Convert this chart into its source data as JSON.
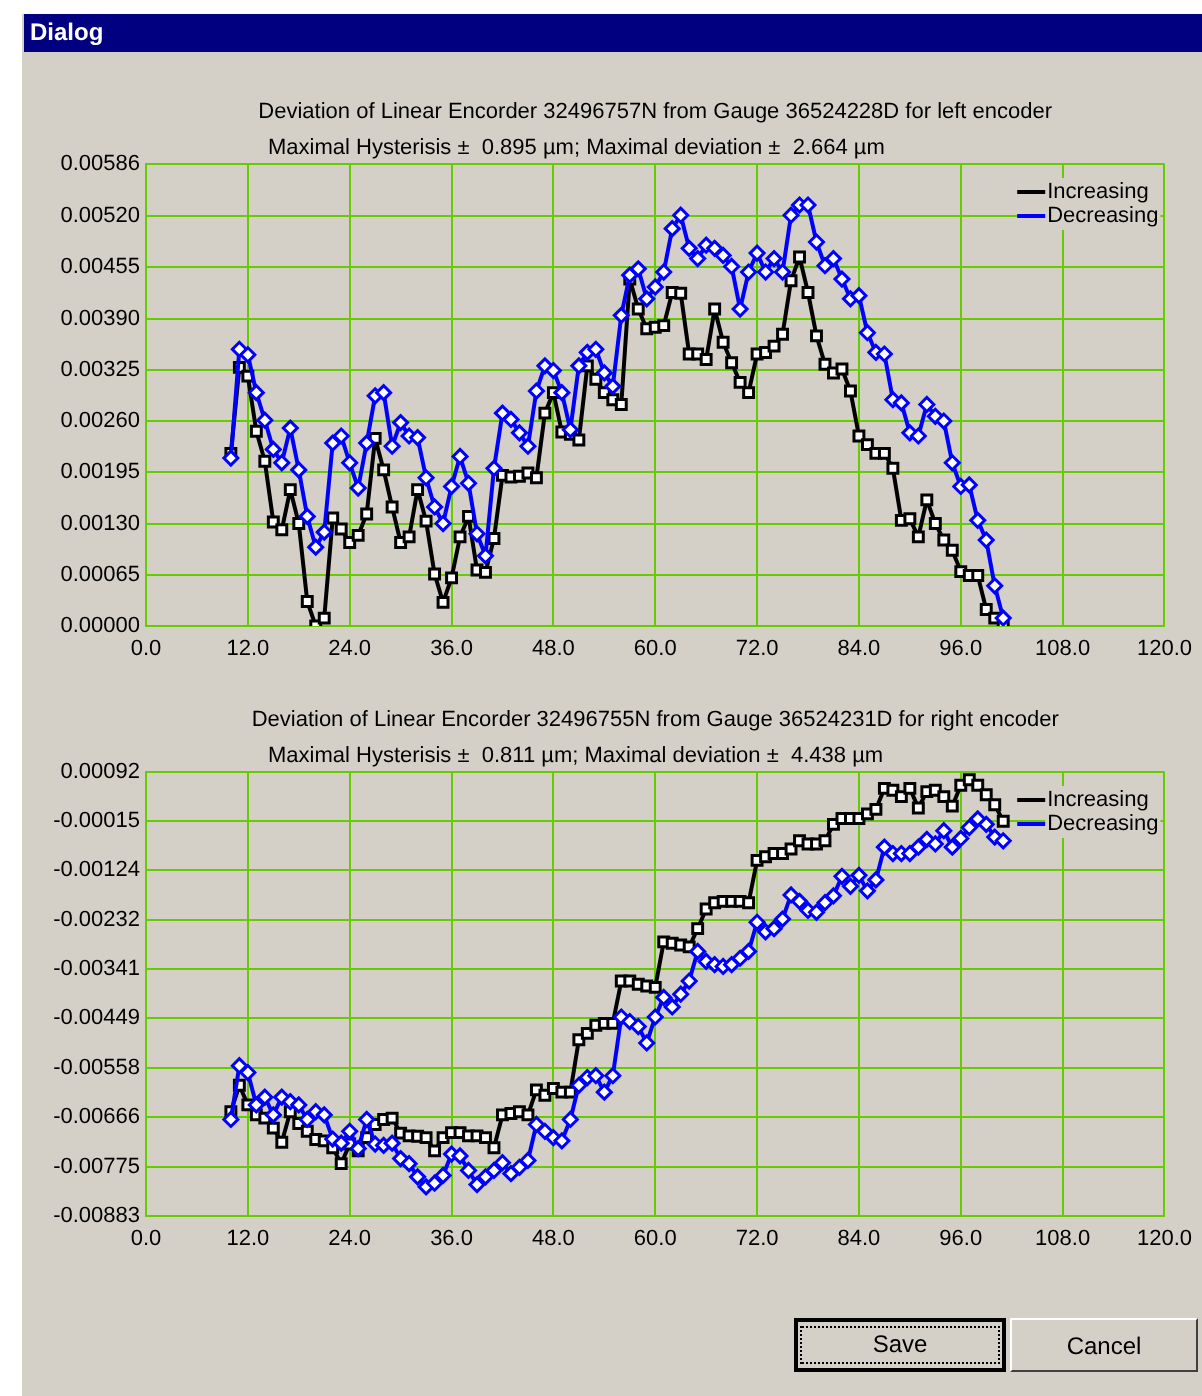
{
  "chart_data": [
    {
      "type": "other",
      "title": "Dialog",
      "annotations": [
        "Save",
        "Cancel"
      ]
    },
    {
      "type": "line",
      "title": "Deviation of Linear Encorder 32496757N from Gauge 36524228D for left encoder",
      "subtitle": "Maximal Hysterisis ±  0.895 µm; Maximal deviation ±  2.664 µm",
      "x": [
        10,
        11,
        12,
        13,
        14,
        15,
        16,
        17,
        18,
        19,
        20,
        21,
        22,
        23,
        24,
        25,
        26,
        27,
        28,
        29,
        30,
        31,
        32,
        33,
        34,
        35,
        36,
        37,
        38,
        39,
        40,
        41,
        42,
        43,
        44,
        45,
        46,
        47,
        48,
        49,
        50,
        51,
        52,
        53,
        54,
        55,
        56,
        57,
        58,
        59,
        60,
        61,
        62,
        63,
        64,
        65,
        66,
        67,
        68,
        69,
        70,
        71,
        72,
        73,
        74,
        75,
        76,
        77,
        78,
        79,
        80,
        81,
        82,
        83,
        84,
        85,
        86,
        87,
        88,
        89,
        90,
        91,
        92,
        93,
        94,
        95,
        96,
        97,
        98,
        99,
        100,
        101
      ],
      "series": [
        {
          "name": "Increasing",
          "color": "#000000",
          "marker": "square",
          "values": [
            0.00219,
            0.00328,
            0.00317,
            0.00247,
            0.00209,
            0.00132,
            0.00122,
            0.00173,
            0.0013,
            0.00031,
            0,
            0.0001,
            0.00137,
            0.00123,
            0.00106,
            0.00115,
            0.00142,
            0.00238,
            0.00198,
            0.00151,
            0.00106,
            0.00113,
            0.00173,
            0.00133,
            0.00066,
            0.0003,
            0.00061,
            0.00113,
            0.00139,
            0.00071,
            0.00068,
            0.00111,
            0.00191,
            0.00189,
            0.0019,
            0.00194,
            0.00188,
            0.0027,
            0.00296,
            0.00246,
            0.00243,
            0.00236,
            0.0033,
            0.00313,
            0.00296,
            0.00287,
            0.00281,
            0.0044,
            0.00402,
            0.00377,
            0.00379,
            0.00381,
            0.00423,
            0.00422,
            0.00345,
            0.00345,
            0.00338,
            0.00402,
            0.0036,
            0.00334,
            0.00309,
            0.00296,
            0.00345,
            0.00347,
            0.00355,
            0.0037,
            0.00438,
            0.00468,
            0.00423,
            0.00368,
            0.00332,
            0.00321,
            0.00326,
            0.00298,
            0.00241,
            0.0023,
            0.00219,
            0.00219,
            0.002,
            0.00134,
            0.00136,
            0.00113,
            0.0016,
            0.0013,
            0.00109,
            0.00096,
            0.00069,
            0.00064,
            0.00064,
            0.00021,
            0.0001,
            0
          ]
        },
        {
          "name": "Decreasing",
          "color": "#0000ff",
          "marker": "diamond",
          "values": [
            0.00213,
            0.00351,
            0.00344,
            0.00296,
            0.00261,
            0.00224,
            0.00207,
            0.00251,
            0.00198,
            0.00139,
            0.001,
            0.00119,
            0.00232,
            0.00241,
            0.00207,
            0.00175,
            0.00232,
            0.00292,
            0.00296,
            0.00228,
            0.00258,
            0.00241,
            0.00239,
            0.00188,
            0.00151,
            0.0013,
            0.00177,
            0.00215,
            0.00181,
            0.00117,
            0.00089,
            0.002,
            0.0027,
            0.00262,
            0.00245,
            0.00228,
            0.00298,
            0.0033,
            0.00324,
            0.00296,
            0.00249,
            0.0033,
            0.00347,
            0.00351,
            0.00321,
            0.00304,
            0.00394,
            0.00445,
            0.00453,
            0.00415,
            0.0043,
            0.00449,
            0.00504,
            0.00521,
            0.00479,
            0.00466,
            0.00483,
            0.00479,
            0.0047,
            0.00456,
            0.00402,
            0.00449,
            0.00473,
            0.00449,
            0.00466,
            0.00449,
            0.00521,
            0.00534,
            0.00534,
            0.00487,
            0.00457,
            0.00466,
            0.0044,
            0.00415,
            0.00419,
            0.00372,
            0.00347,
            0.00345,
            0.00287,
            0.00283,
            0.00245,
            0.00241,
            0.00281,
            0.00266,
            0.0026,
            0.00207,
            0.00177,
            0.00179,
            0.00134,
            0.00109,
            0.00051,
            0.0001
          ]
        }
      ],
      "xlim": [
        0,
        120
      ],
      "xticks": [
        {
          "value": 0,
          "label": "0.0"
        },
        {
          "value": 12,
          "label": "12.0"
        },
        {
          "value": 24,
          "label": "24.0"
        },
        {
          "value": 36,
          "label": "36.0"
        },
        {
          "value": 48,
          "label": "48.0"
        },
        {
          "value": 60,
          "label": "60.0"
        },
        {
          "value": 72,
          "label": "72.0"
        },
        {
          "value": 84,
          "label": "84.0"
        },
        {
          "value": 96,
          "label": "96.0"
        },
        {
          "value": 108,
          "label": "108.0"
        },
        {
          "value": 120,
          "label": "120.0"
        }
      ],
      "ylim": [
        0,
        0.00586
      ],
      "yticks": [
        {
          "value": 0,
          "label": "0.00000"
        },
        0.00065,
        {
          "value": 0.0013,
          "label": "0.00130"
        },
        0.00195,
        {
          "value": 0.0026,
          "label": "0.00260"
        },
        0.00325,
        {
          "value": 0.0039,
          "label": "0.00390"
        },
        0.00455,
        {
          "value": 0.0052,
          "label": "0.00520"
        },
        0.00586
      ],
      "grid": true,
      "legend": "top right"
    },
    {
      "type": "line",
      "title": "Deviation of Linear Encorder 32496755N from Gauge 36524231D for right encoder",
      "subtitle": "Maximal Hysterisis ±  0.811 µm; Maximal deviation ±  4.438 µm",
      "x": [
        10,
        11,
        12,
        13,
        14,
        15,
        16,
        17,
        18,
        19,
        20,
        21,
        22,
        23,
        24,
        25,
        26,
        27,
        28,
        29,
        30,
        31,
        32,
        33,
        34,
        35,
        36,
        37,
        38,
        39,
        40,
        41,
        42,
        43,
        44,
        45,
        46,
        47,
        48,
        49,
        50,
        51,
        52,
        53,
        54,
        55,
        56,
        57,
        58,
        59,
        60,
        61,
        62,
        63,
        64,
        65,
        66,
        67,
        68,
        69,
        70,
        71,
        72,
        73,
        74,
        75,
        76,
        77,
        78,
        79,
        80,
        81,
        82,
        83,
        84,
        85,
        86,
        87,
        88,
        89,
        90,
        91,
        92,
        93,
        94,
        95,
        96,
        97,
        98,
        99,
        100,
        101
      ],
      "series": [
        {
          "name": "Increasing",
          "color": "#000000",
          "marker": "square",
          "values": [
            -0.00654,
            -0.00596,
            -0.00639,
            -0.00661,
            -0.00668,
            -0.0069,
            -0.00721,
            -0.00654,
            -0.0068,
            -0.00697,
            -0.00715,
            -0.00718,
            -0.00733,
            -0.00768,
            -0.00725,
            -0.0074,
            -0.00711,
            -0.00682,
            -0.00671,
            -0.00668,
            -0.00701,
            -0.00707,
            -0.00708,
            -0.00711,
            -0.0074,
            -0.00711,
            -0.007,
            -0.007,
            -0.00707,
            -0.00707,
            -0.00711,
            -0.00733,
            -0.00661,
            -0.00658,
            -0.00654,
            -0.00661,
            -0.00606,
            -0.00618,
            -0.00603,
            -0.00611,
            -0.00611,
            -0.00496,
            -0.00482,
            -0.00464,
            -0.0046,
            -0.0046,
            -0.00367,
            -0.00367,
            -0.00374,
            -0.00378,
            -0.00381,
            -0.00281,
            -0.00284,
            -0.00288,
            -0.00292,
            -0.00252,
            -0.00209,
            -0.00195,
            -0.00192,
            -0.00192,
            -0.00192,
            -0.00195,
            -0.00102,
            -0.00094,
            -0.00087,
            -0.00087,
            -0.00077,
            -0.00059,
            -0.00066,
            -0.00066,
            -0.00059,
            -0.00023,
            -0.0001,
            -0.0001,
            -0.0001,
            0,
            0.0001,
            0.00056,
            0.00052,
            0.00038,
            0.00056,
            0.00013,
            0.00049,
            0.00052,
            0.00038,
            0.00017,
            0.00063,
            0.00075,
            0.00063,
            0.00042,
            0.0002,
            -0.00016
          ]
        },
        {
          "name": "Decreasing",
          "color": "#0000ff",
          "marker": "diamond",
          "values": [
            -0.00671,
            -0.00553,
            -0.00568,
            -0.00639,
            -0.00622,
            -0.00661,
            -0.00622,
            -0.00632,
            -0.00639,
            -0.00671,
            -0.00654,
            -0.00661,
            -0.00714,
            -0.00723,
            -0.00697,
            -0.00735,
            -0.00671,
            -0.00725,
            -0.00728,
            -0.00723,
            -0.00757,
            -0.00768,
            -0.00797,
            -0.00819,
            -0.00811,
            -0.00794,
            -0.00747,
            -0.00751,
            -0.00783,
            -0.00814,
            -0.00797,
            -0.00783,
            -0.00766,
            -0.0079,
            -0.00776,
            -0.00761,
            -0.00682,
            -0.00697,
            -0.00711,
            -0.00718,
            -0.00671,
            -0.00596,
            -0.00579,
            -0.00575,
            -0.00611,
            -0.00575,
            -0.00446,
            -0.00456,
            -0.00467,
            -0.00503,
            -0.00446,
            -0.00403,
            -0.00424,
            -0.00396,
            -0.00367,
            -0.00302,
            -0.00324,
            -0.00331,
            -0.00335,
            -0.00331,
            -0.00317,
            -0.00302,
            -0.00238,
            -0.00259,
            -0.00252,
            -0.00231,
            -0.00178,
            -0.00192,
            -0.00212,
            -0.00216,
            -0.00195,
            -0.0018,
            -0.00137,
            -0.00159,
            -0.00135,
            -0.00169,
            -0.00145,
            -0.00073,
            -0.00087,
            -0.00087,
            -0.00087,
            -0.00073,
            -0.00056,
            -0.00066,
            -0.00037,
            -0.00073,
            -0.00054,
            -0.0003,
            -0.00011,
            -0.00023,
            -0.00051,
            -0.00059
          ]
        }
      ],
      "xlim": [
        0,
        120
      ],
      "xticks": [
        {
          "value": 0,
          "label": "0.0"
        },
        {
          "value": 12,
          "label": "12.0"
        },
        {
          "value": 24,
          "label": "24.0"
        },
        {
          "value": 36,
          "label": "36.0"
        },
        {
          "value": 48,
          "label": "48.0"
        },
        {
          "value": 60,
          "label": "60.0"
        },
        {
          "value": 72,
          "label": "72.0"
        },
        {
          "value": 84,
          "label": "84.0"
        },
        {
          "value": 96,
          "label": "96.0"
        },
        {
          "value": 108,
          "label": "108.0"
        },
        {
          "value": 120,
          "label": "120.0"
        }
      ],
      "ylim": [
        -0.00883,
        0.00092
      ],
      "yticks": [
        -0.00883,
        -0.00775,
        -0.00666,
        -0.00558,
        -0.00449,
        -0.00341,
        -0.00232,
        -0.00124,
        -0.00015,
        0.00092
      ],
      "grid": true,
      "legend": "top right"
    }
  ]
}
